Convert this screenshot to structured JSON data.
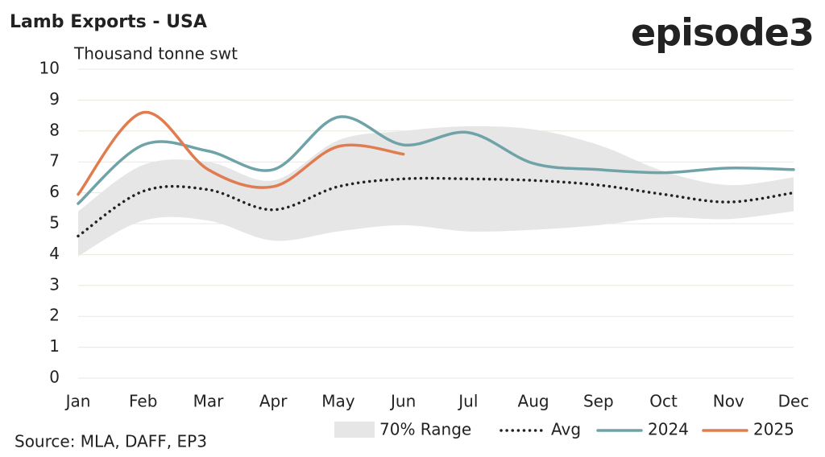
{
  "chart_data": {
    "type": "line",
    "title": "Lamb Exports - USA",
    "logo": "episode3",
    "y_label": "Thousand tonne swt",
    "source": "Source: MLA, DAFF, EP3",
    "categories": [
      "Jan",
      "Feb",
      "Mar",
      "Apr",
      "May",
      "Jun",
      "Jul",
      "Aug",
      "Sep",
      "Oct",
      "Nov",
      "Dec"
    ],
    "range": {
      "name": "70% Range",
      "color": "#e6e6e6",
      "low": [
        3.95,
        5.1,
        5.1,
        4.45,
        4.75,
        4.95,
        4.75,
        4.8,
        4.95,
        5.2,
        5.15,
        5.4
      ],
      "high": [
        5.4,
        6.9,
        7.0,
        6.4,
        7.7,
        8.0,
        8.15,
        8.05,
        7.55,
        6.7,
        6.25,
        6.5
      ]
    },
    "series": [
      {
        "name": "Avg",
        "color": "#222222",
        "dash": true,
        "values": [
          4.6,
          6.05,
          6.1,
          5.45,
          6.2,
          6.45,
          6.45,
          6.4,
          6.25,
          5.95,
          5.7,
          6.0
        ]
      },
      {
        "name": "2024",
        "color": "#6fa3a8",
        "dash": false,
        "values": [
          5.65,
          7.55,
          7.35,
          6.75,
          8.45,
          7.55,
          7.95,
          6.95,
          6.75,
          6.65,
          6.8,
          6.75
        ]
      },
      {
        "name": "2025",
        "color": "#e07c50",
        "dash": false,
        "values": [
          5.95,
          8.6,
          6.75,
          6.2,
          7.5,
          7.25,
          null,
          null,
          null,
          null,
          null,
          null
        ]
      }
    ],
    "ylim": [
      0,
      10
    ],
    "yticks": [
      0,
      1,
      2,
      3,
      4,
      5,
      6,
      7,
      8,
      9,
      10
    ],
    "grid": true
  }
}
